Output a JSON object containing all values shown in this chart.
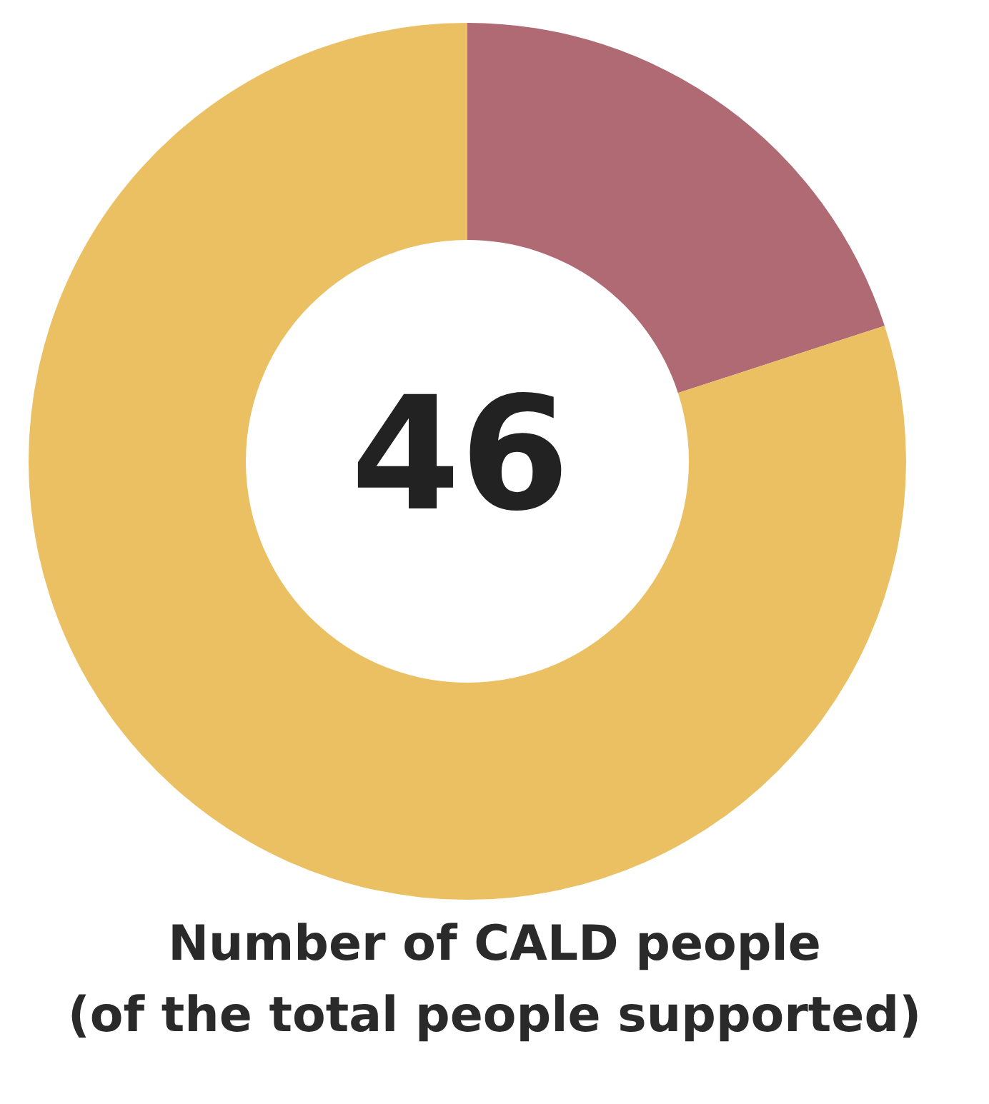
{
  "chart_data": {
    "type": "donut",
    "title": "Number of CALD people\n(of the total people supported)",
    "categories": [
      null,
      null
    ],
    "values": [
      20,
      80
    ],
    "colors": [
      "#b06a74",
      "#ebc062"
    ],
    "annotations": [
      "46"
    ],
    "legend": false
  }
}
